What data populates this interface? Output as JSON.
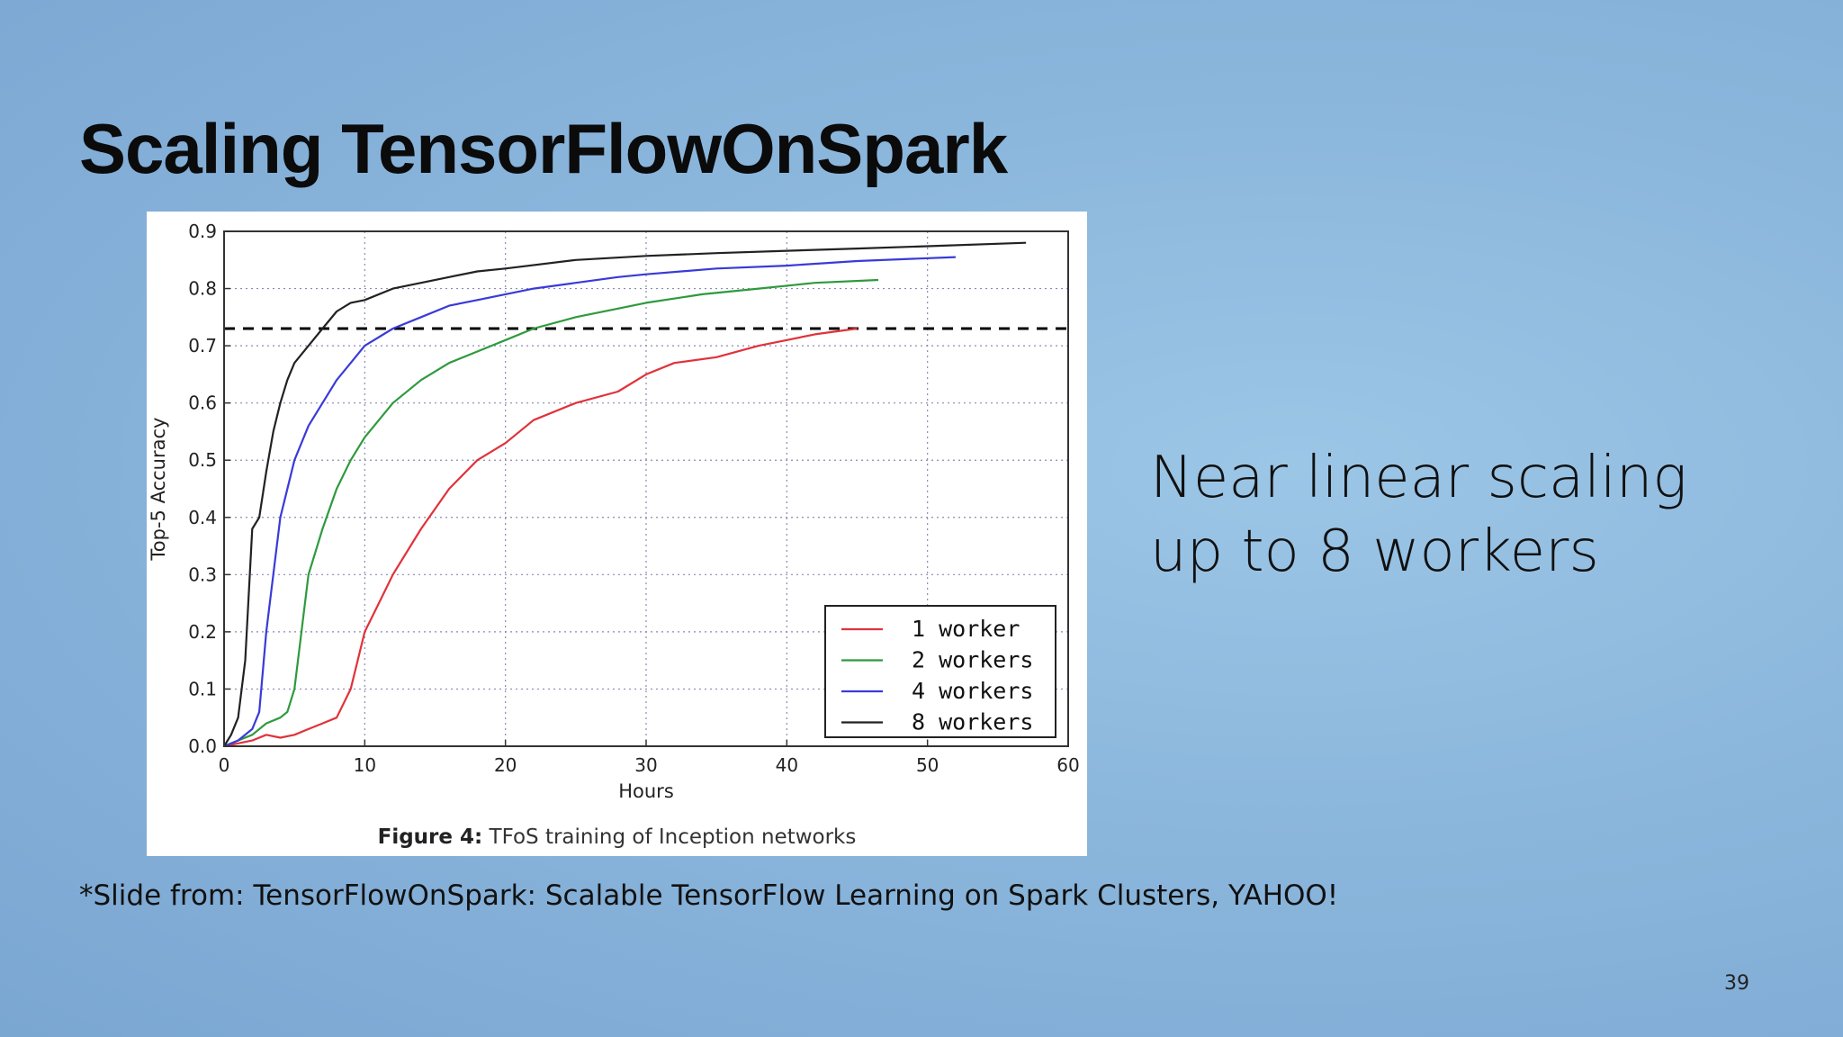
{
  "slide": {
    "title": "Scaling TensorFlowOnSpark",
    "side_text_line1": "Near linear scaling",
    "side_text_line2": "up to 8 workers",
    "footnote": "*Slide from: TensorFlowOnSpark: Scalable TensorFlow Learning on Spark Clusters, YAHOO!",
    "page_number": "39"
  },
  "figure": {
    "caption_bold": "Figure 4:",
    "caption_text": " TFoS training of Inception networks"
  },
  "chart_data": {
    "type": "line",
    "title": "",
    "xlabel": "Hours",
    "ylabel": "Top-5 Accuracy",
    "xlim": [
      0,
      60
    ],
    "ylim": [
      0,
      0.9
    ],
    "x_ticks": [
      0,
      10,
      20,
      30,
      40,
      50,
      60
    ],
    "y_ticks": [
      "0.0",
      "0.1",
      "0.2",
      "0.3",
      "0.4",
      "0.5",
      "0.6",
      "0.7",
      "0.8",
      "0.9"
    ],
    "grid": true,
    "legend_position": "lower-right",
    "reference_line": {
      "y": 0.73,
      "style": "dashed",
      "color": "#000000"
    },
    "series": [
      {
        "name": "1 worker",
        "color": "#e0323a",
        "x": [
          0,
          1,
          2,
          3,
          4,
          5,
          6,
          7,
          8,
          9,
          10,
          11,
          12,
          14,
          16,
          18,
          20,
          22,
          25,
          28,
          30,
          32,
          35,
          38,
          40,
          42,
          45
        ],
        "y": [
          0,
          0.005,
          0.01,
          0.02,
          0.015,
          0.02,
          0.03,
          0.04,
          0.05,
          0.1,
          0.2,
          0.25,
          0.3,
          0.38,
          0.45,
          0.5,
          0.53,
          0.57,
          0.6,
          0.62,
          0.65,
          0.67,
          0.68,
          0.7,
          0.71,
          0.72,
          0.73
        ]
      },
      {
        "name": "2 workers",
        "color": "#2e9a3e",
        "x": [
          0,
          1,
          2,
          3,
          4,
          4.5,
          5,
          5.5,
          6,
          7,
          8,
          9,
          10,
          11,
          12,
          14,
          16,
          18,
          20,
          22,
          25,
          28,
          30,
          34,
          38,
          42,
          46.5
        ],
        "y": [
          0,
          0.01,
          0.02,
          0.04,
          0.05,
          0.06,
          0.1,
          0.2,
          0.3,
          0.38,
          0.45,
          0.5,
          0.54,
          0.57,
          0.6,
          0.64,
          0.67,
          0.69,
          0.71,
          0.73,
          0.75,
          0.765,
          0.775,
          0.79,
          0.8,
          0.81,
          0.815
        ]
      },
      {
        "name": "4 workers",
        "color": "#3a3ad8",
        "x": [
          0,
          1,
          2,
          2.5,
          3,
          3.5,
          4,
          5,
          6,
          7,
          8,
          9,
          10,
          12,
          14,
          16,
          18,
          20,
          22,
          25,
          28,
          30,
          35,
          40,
          45,
          52
        ],
        "y": [
          0,
          0.01,
          0.03,
          0.06,
          0.2,
          0.3,
          0.4,
          0.5,
          0.56,
          0.6,
          0.64,
          0.67,
          0.7,
          0.73,
          0.75,
          0.77,
          0.78,
          0.79,
          0.8,
          0.81,
          0.82,
          0.825,
          0.835,
          0.84,
          0.848,
          0.855
        ]
      },
      {
        "name": "8 workers",
        "color": "#222222",
        "x": [
          0,
          0.5,
          1,
          1.5,
          2,
          2.5,
          3,
          3.5,
          4,
          4.5,
          5,
          6,
          7,
          8,
          9,
          10,
          12,
          14,
          16,
          18,
          20,
          25,
          30,
          35,
          40,
          45,
          50,
          57
        ],
        "y": [
          0,
          0.02,
          0.05,
          0.15,
          0.38,
          0.4,
          0.48,
          0.55,
          0.6,
          0.64,
          0.67,
          0.7,
          0.73,
          0.76,
          0.775,
          0.78,
          0.8,
          0.81,
          0.82,
          0.83,
          0.835,
          0.85,
          0.857,
          0.862,
          0.866,
          0.87,
          0.874,
          0.88
        ]
      }
    ]
  }
}
